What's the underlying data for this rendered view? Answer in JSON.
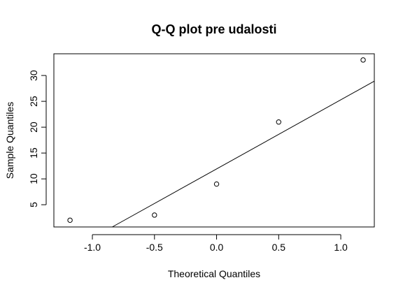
{
  "chart_data": {
    "type": "scatter",
    "title": "Q-Q plot pre udalosti",
    "xlabel": "Theoretical Quantiles",
    "ylabel": "Sample Quantiles",
    "xlim": [
      -1.31,
      1.27
    ],
    "ylim": [
      0.7,
      34.2
    ],
    "x_ticks": [
      -1.0,
      -0.5,
      0.0,
      0.5,
      1.0
    ],
    "x_tick_labels": [
      "-1.0",
      "-0.5",
      "0.0",
      "0.5",
      "1.0"
    ],
    "y_ticks": [
      5,
      10,
      15,
      20,
      25,
      30
    ],
    "y_tick_labels": [
      "5",
      "10",
      "15",
      "20",
      "25",
      "30"
    ],
    "series": [
      {
        "points": [
          {
            "x": -1.18,
            "y": 2
          },
          {
            "x": -0.5,
            "y": 3
          },
          {
            "x": 0.0,
            "y": 9
          },
          {
            "x": 0.5,
            "y": 21
          },
          {
            "x": 1.18,
            "y": 33
          }
        ]
      }
    ],
    "reference_line": {
      "x1": -0.84,
      "y1": 0.7,
      "x2": 1.27,
      "y2": 28.9
    },
    "grid": false,
    "legend": "none"
  }
}
